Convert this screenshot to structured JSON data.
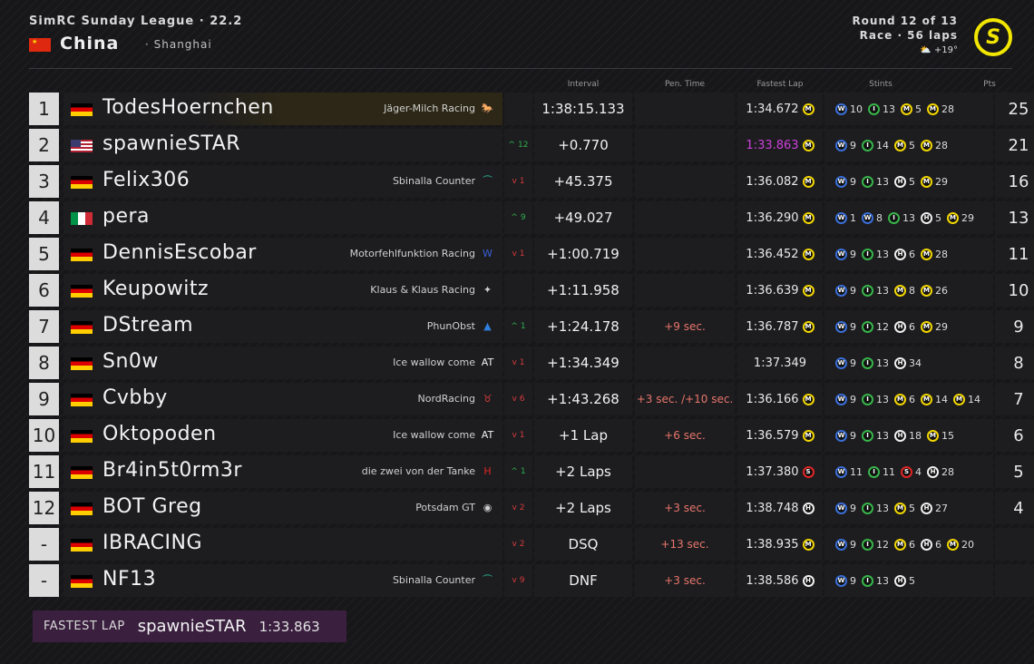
{
  "header": {
    "league": "SimRC Sunday League · 22.2",
    "country": "China",
    "city": "· Shanghai",
    "round": "Round 12 of 13",
    "race": "Race · 56 laps",
    "weather": "+19°",
    "weather_icon": "cloud-sun-icon",
    "logo_letter": "S",
    "accent": "#f2e600"
  },
  "columns": {
    "interval": "Interval",
    "penalty": "Pen. Time",
    "fastest": "Fastest Lap",
    "stints": "Stints",
    "points": "Pts"
  },
  "colors": {
    "fastest_lap": "#cf3fdb",
    "gain": "#2fb04c",
    "loss": "#d63a3a",
    "penalty": "#e8756a"
  },
  "rows": [
    {
      "pos": "1",
      "flag": "de",
      "driver": "TodesHoernchen",
      "team": "Jäger-Milch Racing",
      "team_logo": "ferrari-icon",
      "change": "",
      "dir": "",
      "interval": "1:38:15.133",
      "penalty": "",
      "fastest": "1:34.672",
      "fl_tyre": "M",
      "fastest_overall": false,
      "stints": [
        [
          "W",
          "10"
        ],
        [
          "I",
          "13"
        ],
        [
          "M",
          "5"
        ],
        [
          "M",
          "28"
        ]
      ],
      "pts": "25"
    },
    {
      "pos": "2",
      "flag": "us",
      "driver": "spawnieSTAR",
      "team": "",
      "team_logo": "",
      "change": "12",
      "dir": "up",
      "interval": "+0.770",
      "penalty": "",
      "fastest": "1:33.863",
      "fl_tyre": "M",
      "fastest_overall": true,
      "stints": [
        [
          "W",
          "9"
        ],
        [
          "I",
          "14"
        ],
        [
          "M",
          "5"
        ],
        [
          "M",
          "28"
        ]
      ],
      "pts": "21"
    },
    {
      "pos": "3",
      "flag": "de",
      "driver": "Felix306",
      "team": "Sbinalla Counter",
      "team_logo": "aston-martin-icon",
      "change": "1",
      "dir": "down",
      "interval": "+45.375",
      "penalty": "",
      "fastest": "1:36.082",
      "fl_tyre": "M",
      "fastest_overall": false,
      "stints": [
        [
          "W",
          "9"
        ],
        [
          "I",
          "13"
        ],
        [
          "H",
          "5"
        ],
        [
          "M",
          "29"
        ]
      ],
      "pts": "16"
    },
    {
      "pos": "4",
      "flag": "it",
      "driver": "pera",
      "team": "",
      "team_logo": "",
      "change": "9",
      "dir": "up",
      "interval": "+49.027",
      "penalty": "",
      "fastest": "1:36.290",
      "fl_tyre": "M",
      "fastest_overall": false,
      "stints": [
        [
          "W",
          "1"
        ],
        [
          "W",
          "8"
        ],
        [
          "I",
          "13"
        ],
        [
          "H",
          "5"
        ],
        [
          "M",
          "29"
        ]
      ],
      "pts": "13"
    },
    {
      "pos": "5",
      "flag": "de",
      "driver": "DennisEscobar",
      "team": "Motorfehlfunktion Racing",
      "team_logo": "williams-icon",
      "change": "1",
      "dir": "down",
      "interval": "+1:00.719",
      "penalty": "",
      "fastest": "1:36.452",
      "fl_tyre": "M",
      "fastest_overall": false,
      "stints": [
        [
          "W",
          "9"
        ],
        [
          "I",
          "13"
        ],
        [
          "H",
          "6"
        ],
        [
          "M",
          "28"
        ]
      ],
      "pts": "11"
    },
    {
      "pos": "6",
      "flag": "de",
      "driver": "Keupowitz",
      "team": "Klaus & Klaus Racing",
      "team_logo": "mercedes-icon",
      "change": "",
      "dir": "",
      "interval": "+1:11.958",
      "penalty": "",
      "fastest": "1:36.639",
      "fl_tyre": "M",
      "fastest_overall": false,
      "stints": [
        [
          "W",
          "9"
        ],
        [
          "I",
          "13"
        ],
        [
          "M",
          "8"
        ],
        [
          "M",
          "26"
        ]
      ],
      "pts": "10"
    },
    {
      "pos": "7",
      "flag": "de",
      "driver": "DStream",
      "team": "PhunObst",
      "team_logo": "alpine-icon",
      "change": "1",
      "dir": "up",
      "interval": "+1:24.178",
      "penalty": "+9 sec.",
      "fastest": "1:36.787",
      "fl_tyre": "M",
      "fastest_overall": false,
      "stints": [
        [
          "W",
          "9"
        ],
        [
          "I",
          "12"
        ],
        [
          "H",
          "6"
        ],
        [
          "M",
          "29"
        ]
      ],
      "pts": "9"
    },
    {
      "pos": "8",
      "flag": "de",
      "driver": "Sn0w",
      "team": "Ice wallow come",
      "team_logo": "alphatauri-icon",
      "change": "1",
      "dir": "down",
      "interval": "+1:34.349",
      "penalty": "",
      "fastest": "1:37.349",
      "fl_tyre": "",
      "fastest_overall": false,
      "stints": [
        [
          "W",
          "9"
        ],
        [
          "I",
          "13"
        ],
        [
          "H",
          "34"
        ]
      ],
      "pts": "8"
    },
    {
      "pos": "9",
      "flag": "de",
      "driver": "Cvbby",
      "team": "NordRacing",
      "team_logo": "red-bull-icon",
      "change": "6",
      "dir": "down",
      "interval": "+1:43.268",
      "penalty": "+3 sec. /+10 sec.",
      "fastest": "1:36.166",
      "fl_tyre": "M",
      "fastest_overall": false,
      "stints": [
        [
          "W",
          "9"
        ],
        [
          "I",
          "13"
        ],
        [
          "M",
          "6"
        ],
        [
          "M",
          "14"
        ],
        [
          "M",
          "14"
        ]
      ],
      "pts": "7"
    },
    {
      "pos": "10",
      "flag": "de",
      "driver": "Oktopoden",
      "team": "Ice wallow come",
      "team_logo": "alphatauri-icon",
      "change": "1",
      "dir": "down",
      "interval": "+1 Lap",
      "penalty": "+6 sec.",
      "fastest": "1:36.579",
      "fl_tyre": "M",
      "fastest_overall": false,
      "stints": [
        [
          "W",
          "9"
        ],
        [
          "I",
          "13"
        ],
        [
          "H",
          "18"
        ],
        [
          "M",
          "15"
        ]
      ],
      "pts": "6"
    },
    {
      "pos": "11",
      "flag": "de",
      "driver": "Br4in5t0rm3r",
      "team": "die zwei von der Tanke",
      "team_logo": "haas-icon",
      "change": "1",
      "dir": "up",
      "interval": "+2 Laps",
      "penalty": "",
      "fastest": "1:37.380",
      "fl_tyre": "S",
      "fastest_overall": false,
      "stints": [
        [
          "W",
          "11"
        ],
        [
          "I",
          "11"
        ],
        [
          "S",
          "4"
        ],
        [
          "H",
          "28"
        ]
      ],
      "pts": "5"
    },
    {
      "pos": "12",
      "flag": "de",
      "driver": "BOT Greg",
      "team": "Potsdam GT",
      "team_logo": "alfa-romeo-icon",
      "change": "2",
      "dir": "down",
      "interval": "+2 Laps",
      "penalty": "+3 sec.",
      "fastest": "1:38.748",
      "fl_tyre": "H",
      "fastest_overall": false,
      "stints": [
        [
          "W",
          "9"
        ],
        [
          "I",
          "13"
        ],
        [
          "M",
          "5"
        ],
        [
          "H",
          "27"
        ]
      ],
      "pts": "4"
    },
    {
      "pos": "-",
      "flag": "de",
      "driver": "IBRACING",
      "team": "",
      "team_logo": "",
      "change": "2",
      "dir": "down",
      "interval": "DSQ",
      "penalty": "+13 sec.",
      "fastest": "1:38.935",
      "fl_tyre": "M",
      "fastest_overall": false,
      "stints": [
        [
          "W",
          "9"
        ],
        [
          "I",
          "12"
        ],
        [
          "M",
          "6"
        ],
        [
          "H",
          "6"
        ],
        [
          "M",
          "20"
        ]
      ],
      "pts": ""
    },
    {
      "pos": "-",
      "flag": "de",
      "driver": "NF13",
      "team": "Sbinalla Counter",
      "team_logo": "aston-martin-icon",
      "change": "9",
      "dir": "down",
      "interval": "DNF",
      "penalty": "+3 sec.",
      "fastest": "1:38.586",
      "fl_tyre": "H",
      "fastest_overall": false,
      "stints": [
        [
          "W",
          "9"
        ],
        [
          "I",
          "13"
        ],
        [
          "H",
          "5"
        ]
      ],
      "pts": ""
    }
  ],
  "footer": {
    "label": "FASTEST LAP",
    "driver": "spawnieSTAR",
    "time": "1:33.863"
  }
}
